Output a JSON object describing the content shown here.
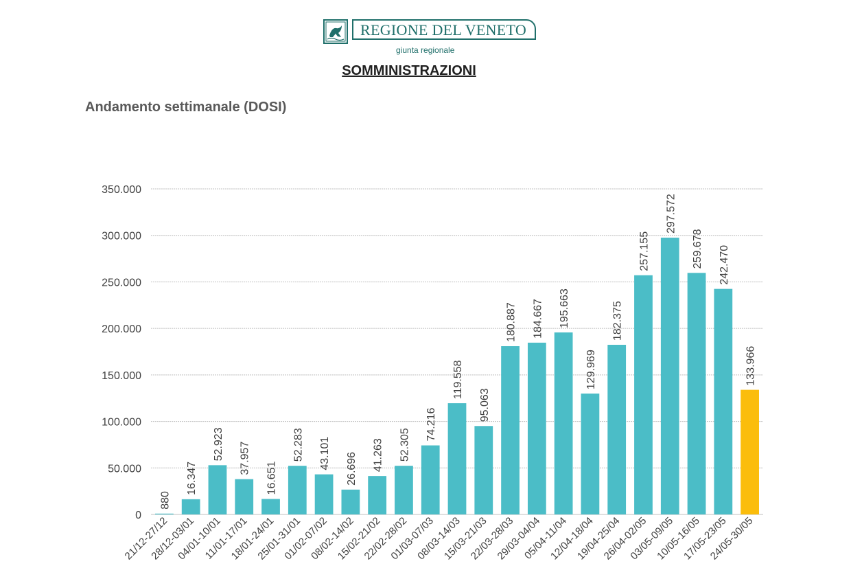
{
  "header": {
    "brand_name": "REGIONE DEL VENETO",
    "brand_sub": "giunta regionale",
    "page_title": "SOMMINISTRAZIONI",
    "subtitle": "Andamento settimanale (DOSI)"
  },
  "colors": {
    "bar": "#4bbdc7",
    "highlight_bar": "#fbbd0c",
    "brand": "#1f6f6a",
    "grid": "#bfbfbf"
  },
  "chart_data": {
    "type": "bar",
    "title": "Andamento settimanale (DOSI)",
    "xlabel": "",
    "ylabel": "",
    "ylim": [
      0,
      350000
    ],
    "yticks": [
      0,
      50000,
      100000,
      150000,
      200000,
      250000,
      300000,
      350000
    ],
    "ytick_labels": [
      "0",
      "50.000",
      "100.000",
      "150.000",
      "200.000",
      "250.000",
      "300.000",
      "350.000"
    ],
    "grid": true,
    "legend": "none",
    "categories": [
      "21/12-27/12",
      "28/12-03/01",
      "04/01-10/01",
      "11/01-17/01",
      "18/01-24/01",
      "25/01-31/01",
      "01/02-07/02",
      "08/02-14/02",
      "15/02-21/02",
      "22/02-28/02",
      "01/03-07/03",
      "08/03-14/03",
      "15/03-21/03",
      "22/03-28/03",
      "29/03-04/04",
      "05/04-11/04",
      "12/04-18/04",
      "19/04-25/04",
      "26/04-02/05",
      "03/05-09/05",
      "10/05-16/05",
      "17/05-23/05",
      "24/05-30/05"
    ],
    "values": [
      880,
      16347,
      52923,
      37957,
      16651,
      52283,
      43101,
      26696,
      41263,
      52305,
      74216,
      119558,
      95063,
      180887,
      184667,
      195663,
      129969,
      182375,
      257155,
      297572,
      259678,
      242470,
      133966
    ],
    "value_labels": [
      "880",
      "16.347",
      "52.923",
      "37.957",
      "16.651",
      "52.283",
      "43.101",
      "26.696",
      "41.263",
      "52.305",
      "74.216",
      "119.558",
      "95.063",
      "180.887",
      "184.667",
      "195.663",
      "129.969",
      "182.375",
      "257.155",
      "297.572",
      "259.678",
      "242.470",
      "133.966"
    ],
    "highlight_index": 22
  }
}
